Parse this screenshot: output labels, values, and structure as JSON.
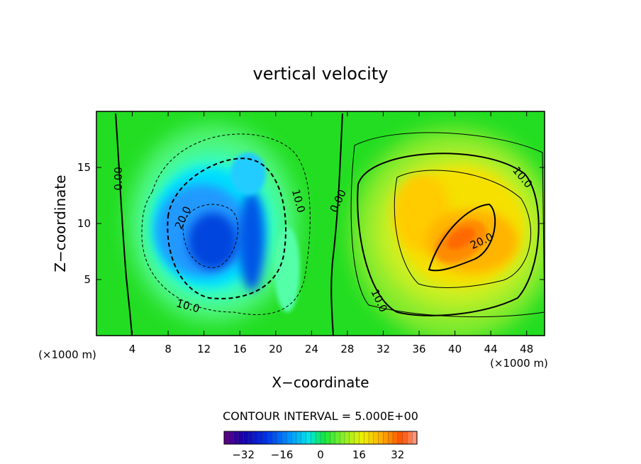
{
  "chart_data": {
    "type": "heatmap",
    "title": "vertical velocity",
    "xlabel": "X−coordinate",
    "ylabel": "Z−coordinate",
    "x_unit_label": "(×1000 m)",
    "y_unit_label": "(×1000 m)",
    "xlim": [
      0,
      50
    ],
    "ylim": [
      0,
      20
    ],
    "x_ticks": [
      4,
      8,
      12,
      16,
      20,
      24,
      28,
      32,
      36,
      40,
      44,
      48
    ],
    "x_tick_labels": [
      "4",
      "8",
      "12",
      "16",
      "20",
      "24",
      "28",
      "32",
      "36",
      "40",
      "44",
      "48"
    ],
    "y_ticks": [
      5,
      10,
      15
    ],
    "y_tick_labels": [
      "5",
      "10",
      "15"
    ],
    "contour_interval_text": "CONTOUR INTERVAL = 5.000E+00",
    "contour_labels": [
      {
        "text": "0.00",
        "x": 2.5,
        "y": 14.0
      },
      {
        "text": "20.0",
        "x": 9.7,
        "y": 10.5
      },
      {
        "text": "10.0",
        "x": 22.5,
        "y": 12.0
      },
      {
        "text": "10.0",
        "x": 10.2,
        "y": 2.6
      },
      {
        "text": "0.00",
        "x": 27.0,
        "y": 12.0
      },
      {
        "text": "10.0",
        "x": 47.5,
        "y": 14.1
      },
      {
        "text": "20.0",
        "x": 43.0,
        "y": 8.4
      },
      {
        "text": "10.0",
        "x": 31.5,
        "y": 3.1
      }
    ],
    "field_features": [
      {
        "kind": "downdraft",
        "center_x": 13.5,
        "center_z": 8.5,
        "peak": -31
      },
      {
        "kind": "downdraft",
        "center_x": 17.5,
        "center_z": 6.5,
        "peak": -26
      },
      {
        "kind": "updraft",
        "center_x": 40.5,
        "center_z": 8.0,
        "peak": 25
      },
      {
        "kind": "updraft",
        "center_x": 35.5,
        "center_z": 10.5,
        "peak": 18
      }
    ],
    "colorbar": {
      "range": [
        -40,
        40
      ],
      "tick_values": [
        -32,
        -16,
        0,
        16,
        32
      ],
      "tick_labels": [
        "−32",
        "−16",
        "0",
        "16",
        "32"
      ]
    }
  }
}
